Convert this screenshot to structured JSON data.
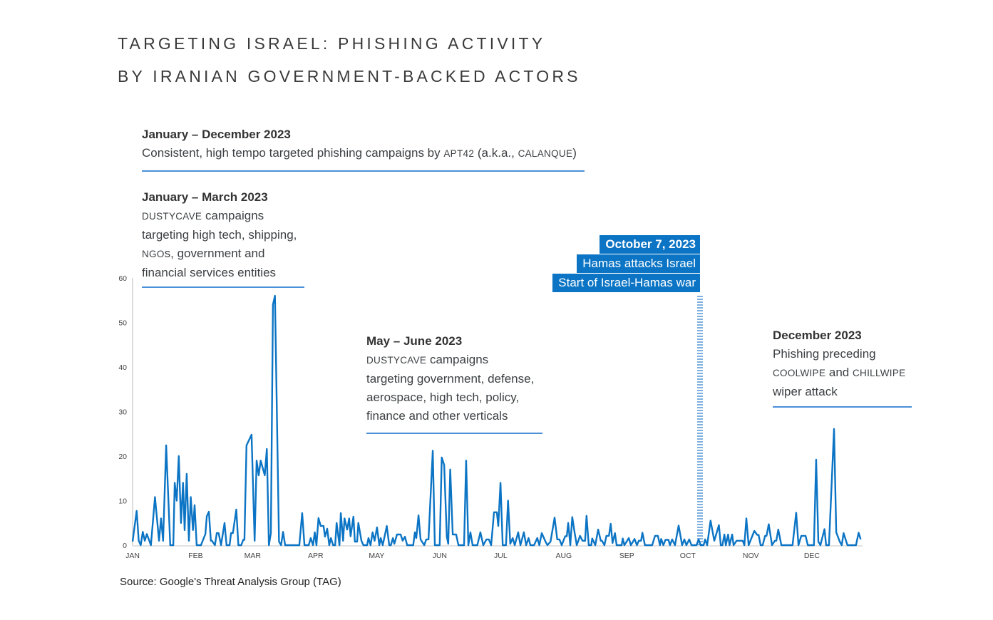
{
  "title_line1": "TARGETING ISRAEL: PHISHING ACTIVITY",
  "title_line2": "BY IRANIAN GOVERNMENT-BACKED ACTORS",
  "annotations": {
    "jan_dec": {
      "heading": "January – December 2023",
      "text_a": "Consistent, high tempo targeted phishing campaigns by ",
      "sc1": "APT42",
      "text_b": " (a.k.a., ",
      "sc2": "CALANQUE",
      "text_c": ")"
    },
    "jan_mar": {
      "heading": "January – March 2023",
      "sc1": "DUSTYCAVE",
      "line1": " campaigns",
      "line2": "targeting high tech, shipping,",
      "sc2": "NGO",
      "line3": "s, government and",
      "line4": "financial services entities"
    },
    "may_jun": {
      "heading": "May – June 2023",
      "sc1": "DUSTYCAVE",
      "line1": " campaigns",
      "line2": "targeting government, defense,",
      "line3": "aerospace, high tech, policy,",
      "line4": "finance and other verticals"
    },
    "oct": {
      "line1": "October 7, 2023",
      "line2": "Hamas attacks Israel",
      "line3": "Start of Israel-Hamas war"
    },
    "dec": {
      "heading": "December 2023",
      "line1": "Phishing preceding",
      "sc1": "COOLWIPE",
      "line2": " and ",
      "sc2": "CHILLWIPE",
      "line3": "wiper attack"
    }
  },
  "source": "Source: Google's Threat Analysis Group (TAG)",
  "colors": {
    "line": "#0b74c4",
    "annotation_rule": "#4a90d9",
    "event_box": "#0b74c4",
    "event_marker": "#7fb0e0"
  },
  "chart_data": {
    "type": "line",
    "title": "Targeting Israel: Phishing activity by Iranian government-backed actors",
    "xlabel": "",
    "ylabel": "",
    "x_unit": "day of year 2023",
    "ylim": [
      0,
      60
    ],
    "yticks": [
      "0",
      "10",
      "20",
      "30",
      "40",
      "50",
      "60"
    ],
    "xticks": [
      {
        "label": "JAN",
        "day": 0
      },
      {
        "label": "FEB",
        "day": 31
      },
      {
        "label": "MAR",
        "day": 59
      },
      {
        "label": "APR",
        "day": 90
      },
      {
        "label": "MAY",
        "day": 120
      },
      {
        "label": "JUN",
        "day": 151
      },
      {
        "label": "JUL",
        "day": 181
      },
      {
        "label": "AUG",
        "day": 212
      },
      {
        "label": "SEP",
        "day": 243
      },
      {
        "label": "OCT",
        "day": 273
      },
      {
        "label": "NOV",
        "day": 304
      },
      {
        "label": "DEC",
        "day": 334
      }
    ],
    "event_marker_day": 279,
    "grid": false,
    "series": [
      {
        "name": "Phishing activity",
        "points": [
          [
            0,
            0.8
          ],
          [
            2,
            7.7
          ],
          [
            3,
            1
          ],
          [
            4,
            0
          ],
          [
            5,
            3
          ],
          [
            6,
            1
          ],
          [
            7,
            2.5
          ],
          [
            9,
            0
          ],
          [
            11,
            10.8
          ],
          [
            13,
            1
          ],
          [
            14,
            6
          ],
          [
            15,
            1
          ],
          [
            16.5,
            22.4
          ],
          [
            18.5,
            0
          ],
          [
            20,
            0
          ],
          [
            20.7,
            14
          ],
          [
            21.7,
            10
          ],
          [
            22.7,
            20
          ],
          [
            23.8,
            5
          ],
          [
            24.8,
            14
          ],
          [
            25.6,
            3.4
          ],
          [
            26.6,
            16
          ],
          [
            27.7,
            1
          ],
          [
            28.6,
            10.8
          ],
          [
            29.7,
            3.4
          ],
          [
            30.5,
            9
          ],
          [
            31.5,
            0
          ],
          [
            33.6,
            0
          ],
          [
            35.8,
            2.5
          ],
          [
            36.5,
            6.5
          ],
          [
            37.5,
            7.5
          ],
          [
            38.5,
            1
          ],
          [
            39,
            1
          ],
          [
            40.5,
            0
          ],
          [
            41.4,
            2.7
          ],
          [
            42.3,
            2.7
          ],
          [
            43.5,
            0
          ],
          [
            45.2,
            5
          ],
          [
            46.2,
            0
          ],
          [
            47.7,
            0
          ],
          [
            48.4,
            2.7
          ],
          [
            49.3,
            2.7
          ],
          [
            51,
            8
          ],
          [
            52,
            0
          ],
          [
            53.4,
            0
          ],
          [
            54.4,
            1.2
          ],
          [
            55,
            1.2
          ],
          [
            56,
            22.4
          ],
          [
            58.5,
            24.8
          ],
          [
            60,
            1
          ],
          [
            61,
            19
          ],
          [
            62,
            15.7
          ],
          [
            63,
            19
          ],
          [
            65,
            15.7
          ],
          [
            66,
            21.6
          ],
          [
            67,
            0
          ],
          [
            68,
            2.7
          ],
          [
            69,
            54
          ],
          [
            70,
            56
          ],
          [
            72,
            0.8
          ],
          [
            73,
            0
          ],
          [
            74,
            3
          ],
          [
            75,
            0
          ],
          [
            82,
            0
          ],
          [
            83.4,
            7.2
          ],
          [
            84.5,
            0
          ],
          [
            86.6,
            0
          ],
          [
            87.6,
            1.6
          ],
          [
            88.7,
            0
          ],
          [
            89.6,
            2.9
          ],
          [
            90.4,
            0
          ],
          [
            91.4,
            6.1
          ],
          [
            92.5,
            4.3
          ],
          [
            93.9,
            4.3
          ],
          [
            94.6,
            1.9
          ],
          [
            95.7,
            3.7
          ],
          [
            96.7,
            0
          ],
          [
            97.5,
            1.6
          ],
          [
            98.6,
            0
          ],
          [
            99.6,
            0
          ],
          [
            100.3,
            5
          ],
          [
            101.7,
            0
          ],
          [
            102.4,
            7.2
          ],
          [
            103.5,
            1
          ],
          [
            104.2,
            6
          ],
          [
            105.5,
            3.5
          ],
          [
            106.5,
            6
          ],
          [
            107.2,
            2
          ],
          [
            108.6,
            6.4
          ],
          [
            109.3,
            0.8
          ],
          [
            110.4,
            0.8
          ],
          [
            111,
            5
          ],
          [
            112.5,
            1
          ],
          [
            113.5,
            0
          ],
          [
            115.3,
            0
          ],
          [
            116,
            1.6
          ],
          [
            117,
            0
          ],
          [
            118,
            2.9
          ],
          [
            119,
            1
          ],
          [
            120.2,
            4
          ],
          [
            121.3,
            0
          ],
          [
            122,
            1.6
          ],
          [
            123,
            0
          ],
          [
            125,
            4.3
          ],
          [
            126.2,
            0
          ],
          [
            127,
            0
          ],
          [
            128,
            1.6
          ],
          [
            128.7,
            0.3
          ],
          [
            130,
            2.4
          ],
          [
            131.8,
            2.4
          ],
          [
            132.8,
            1
          ],
          [
            133.9,
            1.9
          ],
          [
            135,
            0
          ],
          [
            138,
            0
          ],
          [
            138.8,
            2.9
          ],
          [
            139.5,
            1.6
          ],
          [
            140.6,
            6.7
          ],
          [
            141.6,
            1.3
          ],
          [
            143.4,
            0
          ],
          [
            144.4,
            1.3
          ],
          [
            145.5,
            1.3
          ],
          [
            147.6,
            21.2
          ],
          [
            148.6,
            0
          ],
          [
            151,
            0
          ],
          [
            152,
            19.7
          ],
          [
            153.2,
            18
          ],
          [
            154.5,
            1.9
          ],
          [
            155.2,
            0.3
          ],
          [
            156.2,
            17
          ],
          [
            157.4,
            2.4
          ],
          [
            159.1,
            2.4
          ],
          [
            160.2,
            0
          ],
          [
            163,
            0
          ],
          [
            164,
            19
          ],
          [
            165.1,
            0
          ],
          [
            166.1,
            2.9
          ],
          [
            167.2,
            0
          ],
          [
            169.5,
            0
          ],
          [
            171,
            2.9
          ],
          [
            172.4,
            0
          ],
          [
            174,
            1.3
          ],
          [
            175.2,
            1.3
          ],
          [
            176.3,
            0
          ],
          [
            177.7,
            7.4
          ],
          [
            179.1,
            7.4
          ],
          [
            179.8,
            4.3
          ],
          [
            180.9,
            14
          ],
          [
            182,
            0
          ],
          [
            183.6,
            0
          ],
          [
            184.6,
            10
          ],
          [
            185.7,
            0.3
          ],
          [
            186.9,
            1.6
          ],
          [
            187.9,
            0
          ],
          [
            189.6,
            2.9
          ],
          [
            190.7,
            0
          ],
          [
            192.4,
            2.9
          ],
          [
            193.5,
            0
          ],
          [
            194.7,
            1.6
          ],
          [
            195.6,
            0
          ],
          [
            197.4,
            0
          ],
          [
            199,
            1.6
          ],
          [
            200,
            0
          ],
          [
            201.2,
            2.7
          ],
          [
            203,
            0.8
          ],
          [
            204,
            0
          ],
          [
            205.5,
            0.8
          ],
          [
            207.5,
            6.2
          ],
          [
            208.8,
            1.3
          ],
          [
            209.9,
            1.3
          ],
          [
            211,
            0
          ],
          [
            212.7,
            2
          ],
          [
            213.5,
            2
          ],
          [
            214.2,
            5
          ],
          [
            215.2,
            0
          ],
          [
            216.2,
            6.3
          ],
          [
            217.3,
            2.9
          ],
          [
            218.4,
            0
          ],
          [
            220,
            2.1
          ],
          [
            221.2,
            1
          ],
          [
            222.5,
            1
          ],
          [
            223.2,
            6.6
          ],
          [
            224.3,
            0
          ],
          [
            225.5,
            0
          ],
          [
            226,
            1.5
          ],
          [
            227.5,
            0
          ],
          [
            228.9,
            3.5
          ],
          [
            230.2,
            1
          ],
          [
            230.8,
            1
          ],
          [
            232,
            0
          ],
          [
            233,
            2.1
          ],
          [
            234.2,
            2.1
          ],
          [
            235.1,
            4.8
          ],
          [
            236,
            0.5
          ],
          [
            237.2,
            2.7
          ],
          [
            238,
            0
          ],
          [
            240.5,
            0
          ],
          [
            241,
            1.5
          ],
          [
            241.8,
            0
          ],
          [
            244,
            1.6
          ],
          [
            245,
            0
          ],
          [
            246.8,
            1.4
          ],
          [
            248,
            0
          ],
          [
            248.9,
            1
          ],
          [
            250,
            1
          ],
          [
            250.7,
            2.8
          ],
          [
            251.9,
            0
          ],
          [
            255.5,
            0
          ],
          [
            256.9,
            2.1
          ],
          [
            258.3,
            2.1
          ],
          [
            259.3,
            0
          ],
          [
            259.9,
            1.4
          ],
          [
            261,
            0
          ],
          [
            262,
            1.2
          ],
          [
            263.5,
            1.2
          ],
          [
            264.2,
            0
          ],
          [
            265.3,
            1.3
          ],
          [
            266.7,
            0
          ],
          [
            268.5,
            4.4
          ],
          [
            270.2,
            0
          ],
          [
            271.3,
            1.3
          ],
          [
            272.3,
            0
          ],
          [
            273.7,
            1.3
          ],
          [
            274.8,
            0
          ],
          [
            277.3,
            0
          ],
          [
            278.3,
            1.3
          ],
          [
            279.3,
            0
          ],
          [
            280.8,
            0
          ],
          [
            281.5,
            1.3
          ],
          [
            282.5,
            0
          ],
          [
            284.2,
            5.5
          ],
          [
            286,
            1
          ],
          [
            288.3,
            4.5
          ],
          [
            289.2,
            0
          ],
          [
            290,
            0
          ],
          [
            291,
            2.4
          ],
          [
            291.7,
            0
          ],
          [
            292.8,
            2.4
          ],
          [
            293.5,
            0
          ],
          [
            294.8,
            2.4
          ],
          [
            295.5,
            0
          ],
          [
            297,
            1
          ],
          [
            300,
            1
          ],
          [
            300.8,
            0
          ],
          [
            301.8,
            6
          ],
          [
            302.9,
            0
          ],
          [
            305.7,
            3.2
          ],
          [
            307.1,
            2.3
          ],
          [
            307.8,
            2.3
          ],
          [
            308.8,
            0
          ],
          [
            309.8,
            0
          ],
          [
            311,
            2.1
          ],
          [
            311.7,
            2.1
          ],
          [
            312.8,
            4.7
          ],
          [
            314.4,
            0
          ],
          [
            315.8,
            1
          ],
          [
            316.5,
            1
          ],
          [
            317.5,
            3.5
          ],
          [
            319,
            0
          ],
          [
            324.5,
            0
          ],
          [
            326.3,
            7.3
          ],
          [
            327.4,
            0
          ],
          [
            328.8,
            2.1
          ],
          [
            330.9,
            2.1
          ],
          [
            332,
            0
          ],
          [
            335,
            0
          ],
          [
            336.1,
            19.2
          ],
          [
            337.2,
            0.8
          ],
          [
            338.2,
            0
          ],
          [
            340.2,
            3.6
          ],
          [
            341,
            0
          ],
          [
            342.4,
            0
          ],
          [
            344.9,
            26.1
          ],
          [
            346,
            2.9
          ],
          [
            347.7,
            0.8
          ],
          [
            348.7,
            0
          ],
          [
            349.6,
            2.7
          ],
          [
            351.5,
            0
          ],
          [
            355.7,
            0
          ],
          [
            357,
            2.8
          ],
          [
            358,
            1.3
          ]
        ]
      }
    ]
  }
}
